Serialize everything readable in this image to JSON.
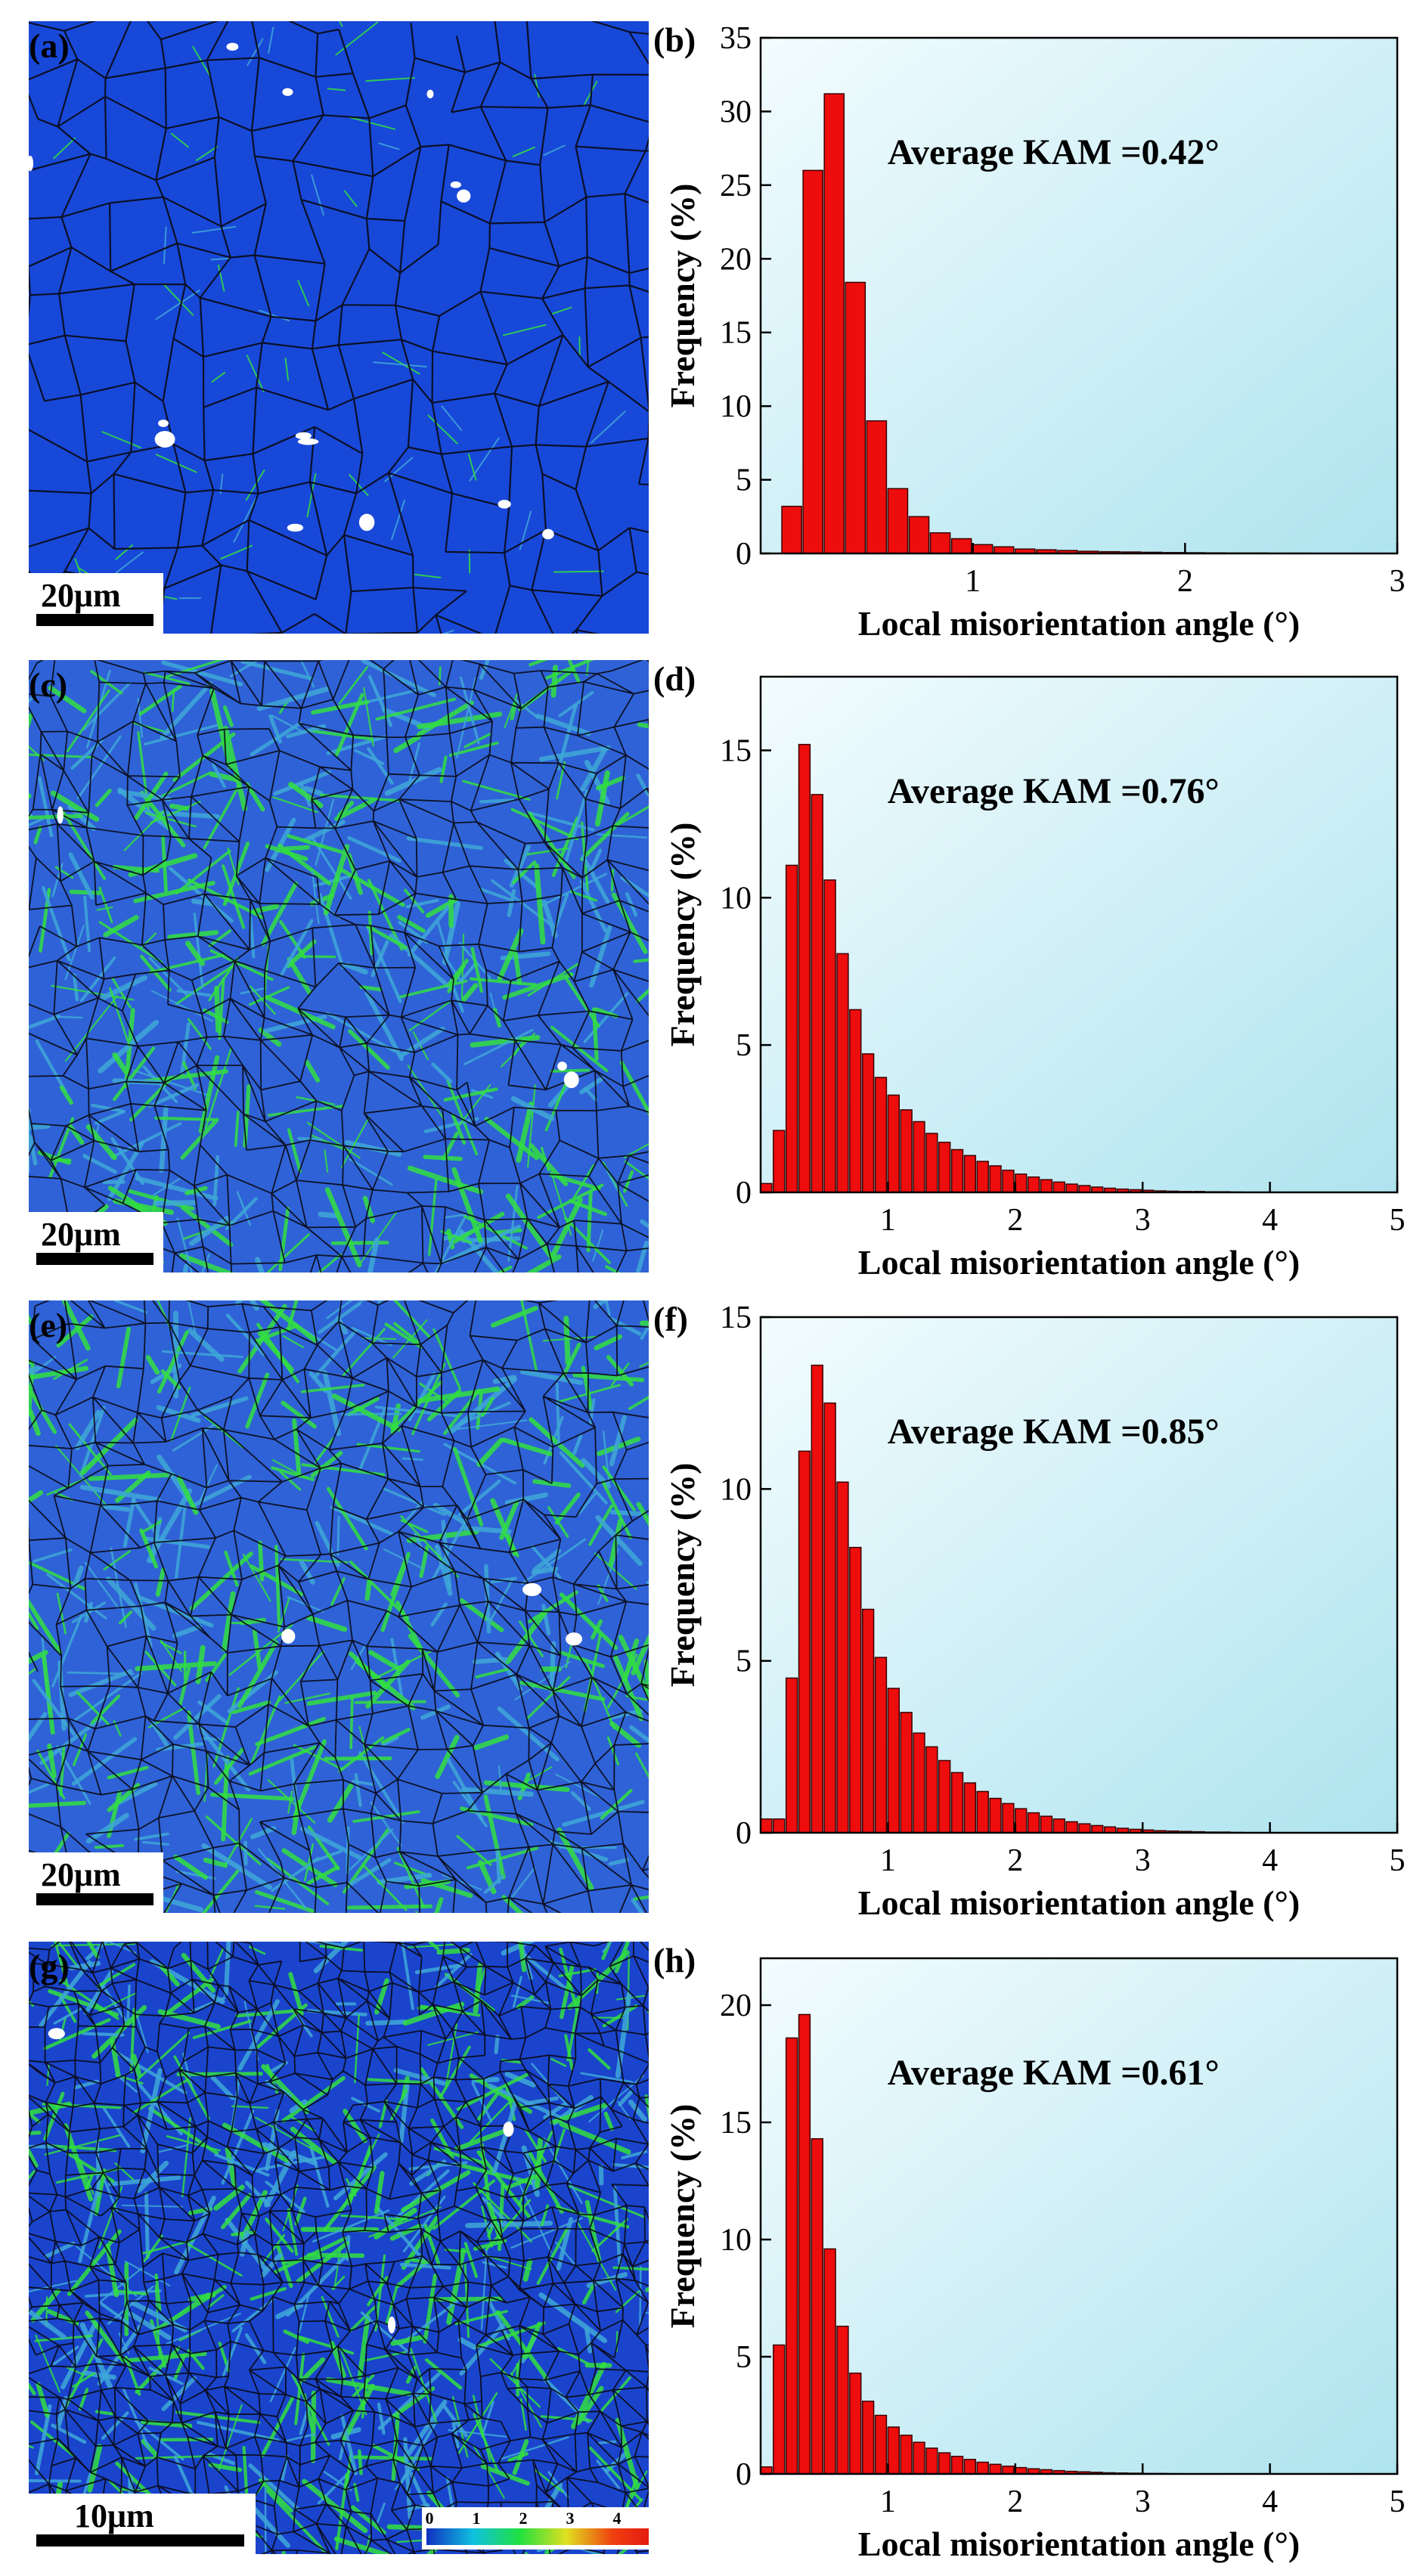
{
  "panels_left": [
    {
      "label": "(a)",
      "scale": "20μm",
      "theme": "blue"
    },
    {
      "label": "(c)",
      "scale": "20μm",
      "theme": "green"
    },
    {
      "label": "(e)",
      "scale": "20μm",
      "theme": "green"
    },
    {
      "label": "(g)",
      "scale": "10μm",
      "theme": "mixed"
    }
  ],
  "colorbar": {
    "ticks": [
      "0",
      "1",
      "2",
      "3",
      "4"
    ],
    "colors": [
      "#1030c0",
      "#10c0e0",
      "#20e040",
      "#e0e020",
      "#f04010",
      "#e01010"
    ]
  },
  "chart_data": [
    {
      "type": "bar",
      "label": "(b)",
      "title": "",
      "annotation": "Average KAM =0.42°",
      "xlabel": "Local misorientation angle (°)",
      "ylabel": "Frequency (%)",
      "xlim": [
        0,
        3
      ],
      "ylim": [
        0,
        35
      ],
      "xticks": [
        1,
        2,
        3
      ],
      "yticks": [
        0,
        5,
        10,
        15,
        20,
        25,
        30,
        35
      ],
      "bin_width": 0.1,
      "x": [
        0.15,
        0.25,
        0.35,
        0.45,
        0.55,
        0.65,
        0.75,
        0.85,
        0.95,
        1.05,
        1.15,
        1.25,
        1.35,
        1.45,
        1.55,
        1.65,
        1.75,
        1.85,
        1.95,
        2.05,
        2.15,
        2.25,
        2.35,
        2.45,
        2.55,
        2.65,
        2.75
      ],
      "values": [
        3.2,
        26,
        31.2,
        18.4,
        9,
        4.4,
        2.5,
        1.4,
        1.0,
        0.6,
        0.45,
        0.3,
        0.25,
        0.2,
        0.15,
        0.12,
        0.1,
        0.08,
        0.06,
        0.05,
        0.04,
        0.03,
        0.03,
        0.02,
        0.02,
        0.01,
        0.01
      ]
    },
    {
      "type": "bar",
      "label": "(d)",
      "title": "",
      "annotation": "Average KAM =0.76°",
      "xlabel": "Local misorientation angle (°)",
      "ylabel": "Frequency (%)",
      "xlim": [
        0,
        5
      ],
      "ylim": [
        0,
        17.5
      ],
      "xticks": [
        1,
        2,
        3,
        4,
        5
      ],
      "yticks": [
        0,
        5,
        10,
        15
      ],
      "bin_width": 0.1,
      "x": [
        0.05,
        0.15,
        0.25,
        0.35,
        0.45,
        0.55,
        0.65,
        0.75,
        0.85,
        0.95,
        1.05,
        1.15,
        1.25,
        1.35,
        1.45,
        1.55,
        1.65,
        1.75,
        1.85,
        1.95,
        2.05,
        2.15,
        2.25,
        2.35,
        2.45,
        2.55,
        2.65,
        2.75,
        2.85,
        2.95,
        3.05,
        3.15,
        3.25,
        3.35,
        3.45,
        3.55,
        3.65,
        3.75
      ],
      "values": [
        0.3,
        2.1,
        11.1,
        15.2,
        13.5,
        10.6,
        8.1,
        6.2,
        4.7,
        3.9,
        3.3,
        2.8,
        2.4,
        2.0,
        1.7,
        1.45,
        1.25,
        1.05,
        0.9,
        0.75,
        0.62,
        0.52,
        0.43,
        0.35,
        0.28,
        0.23,
        0.18,
        0.14,
        0.11,
        0.09,
        0.07,
        0.05,
        0.04,
        0.03,
        0.03,
        0.02,
        0.02,
        0.01
      ]
    },
    {
      "type": "bar",
      "label": "(f)",
      "title": "",
      "annotation": "Average KAM =0.85°",
      "xlabel": "Local misorientation angle (°)",
      "ylabel": "Frequency (%)",
      "xlim": [
        0,
        5
      ],
      "ylim": [
        0,
        15
      ],
      "xticks": [
        1,
        2,
        3,
        4,
        5
      ],
      "yticks": [
        0,
        5,
        10,
        15
      ],
      "bin_width": 0.1,
      "x": [
        0.05,
        0.15,
        0.25,
        0.35,
        0.45,
        0.55,
        0.65,
        0.75,
        0.85,
        0.95,
        1.05,
        1.15,
        1.25,
        1.35,
        1.45,
        1.55,
        1.65,
        1.75,
        1.85,
        1.95,
        2.05,
        2.15,
        2.25,
        2.35,
        2.45,
        2.55,
        2.65,
        2.75,
        2.85,
        2.95,
        3.05,
        3.15,
        3.25,
        3.35,
        3.45,
        3.55,
        3.65,
        3.75
      ],
      "values": [
        0.4,
        0.4,
        4.5,
        11.1,
        13.6,
        12.5,
        10.2,
        8.3,
        6.5,
        5.1,
        4.2,
        3.5,
        2.9,
        2.5,
        2.1,
        1.75,
        1.45,
        1.2,
        1.0,
        0.85,
        0.7,
        0.58,
        0.48,
        0.4,
        0.32,
        0.26,
        0.21,
        0.17,
        0.13,
        0.1,
        0.08,
        0.06,
        0.05,
        0.04,
        0.03,
        0.02,
        0.02,
        0.01
      ]
    },
    {
      "type": "bar",
      "label": "(h)",
      "title": "",
      "annotation": "Average KAM =0.61°",
      "xlabel": "Local misorientation angle (°)",
      "ylabel": "Frequency (%)",
      "xlim": [
        0,
        5
      ],
      "ylim": [
        0,
        22
      ],
      "xticks": [
        1,
        2,
        3,
        4,
        5
      ],
      "yticks": [
        0,
        5,
        10,
        15,
        20
      ],
      "bin_width": 0.1,
      "x": [
        0.05,
        0.15,
        0.25,
        0.35,
        0.45,
        0.55,
        0.65,
        0.75,
        0.85,
        0.95,
        1.05,
        1.15,
        1.25,
        1.35,
        1.45,
        1.55,
        1.65,
        1.75,
        1.85,
        1.95,
        2.05,
        2.15,
        2.25,
        2.35,
        2.45,
        2.55,
        2.65,
        2.75,
        2.85,
        2.95,
        3.05,
        3.15,
        3.25
      ],
      "values": [
        0.3,
        5.5,
        18.6,
        19.6,
        14.3,
        9.6,
        6.3,
        4.3,
        3.1,
        2.5,
        2.0,
        1.65,
        1.35,
        1.1,
        0.9,
        0.75,
        0.62,
        0.5,
        0.41,
        0.33,
        0.27,
        0.22,
        0.18,
        0.14,
        0.11,
        0.09,
        0.07,
        0.05,
        0.04,
        0.03,
        0.02,
        0.02,
        0.01
      ]
    }
  ]
}
